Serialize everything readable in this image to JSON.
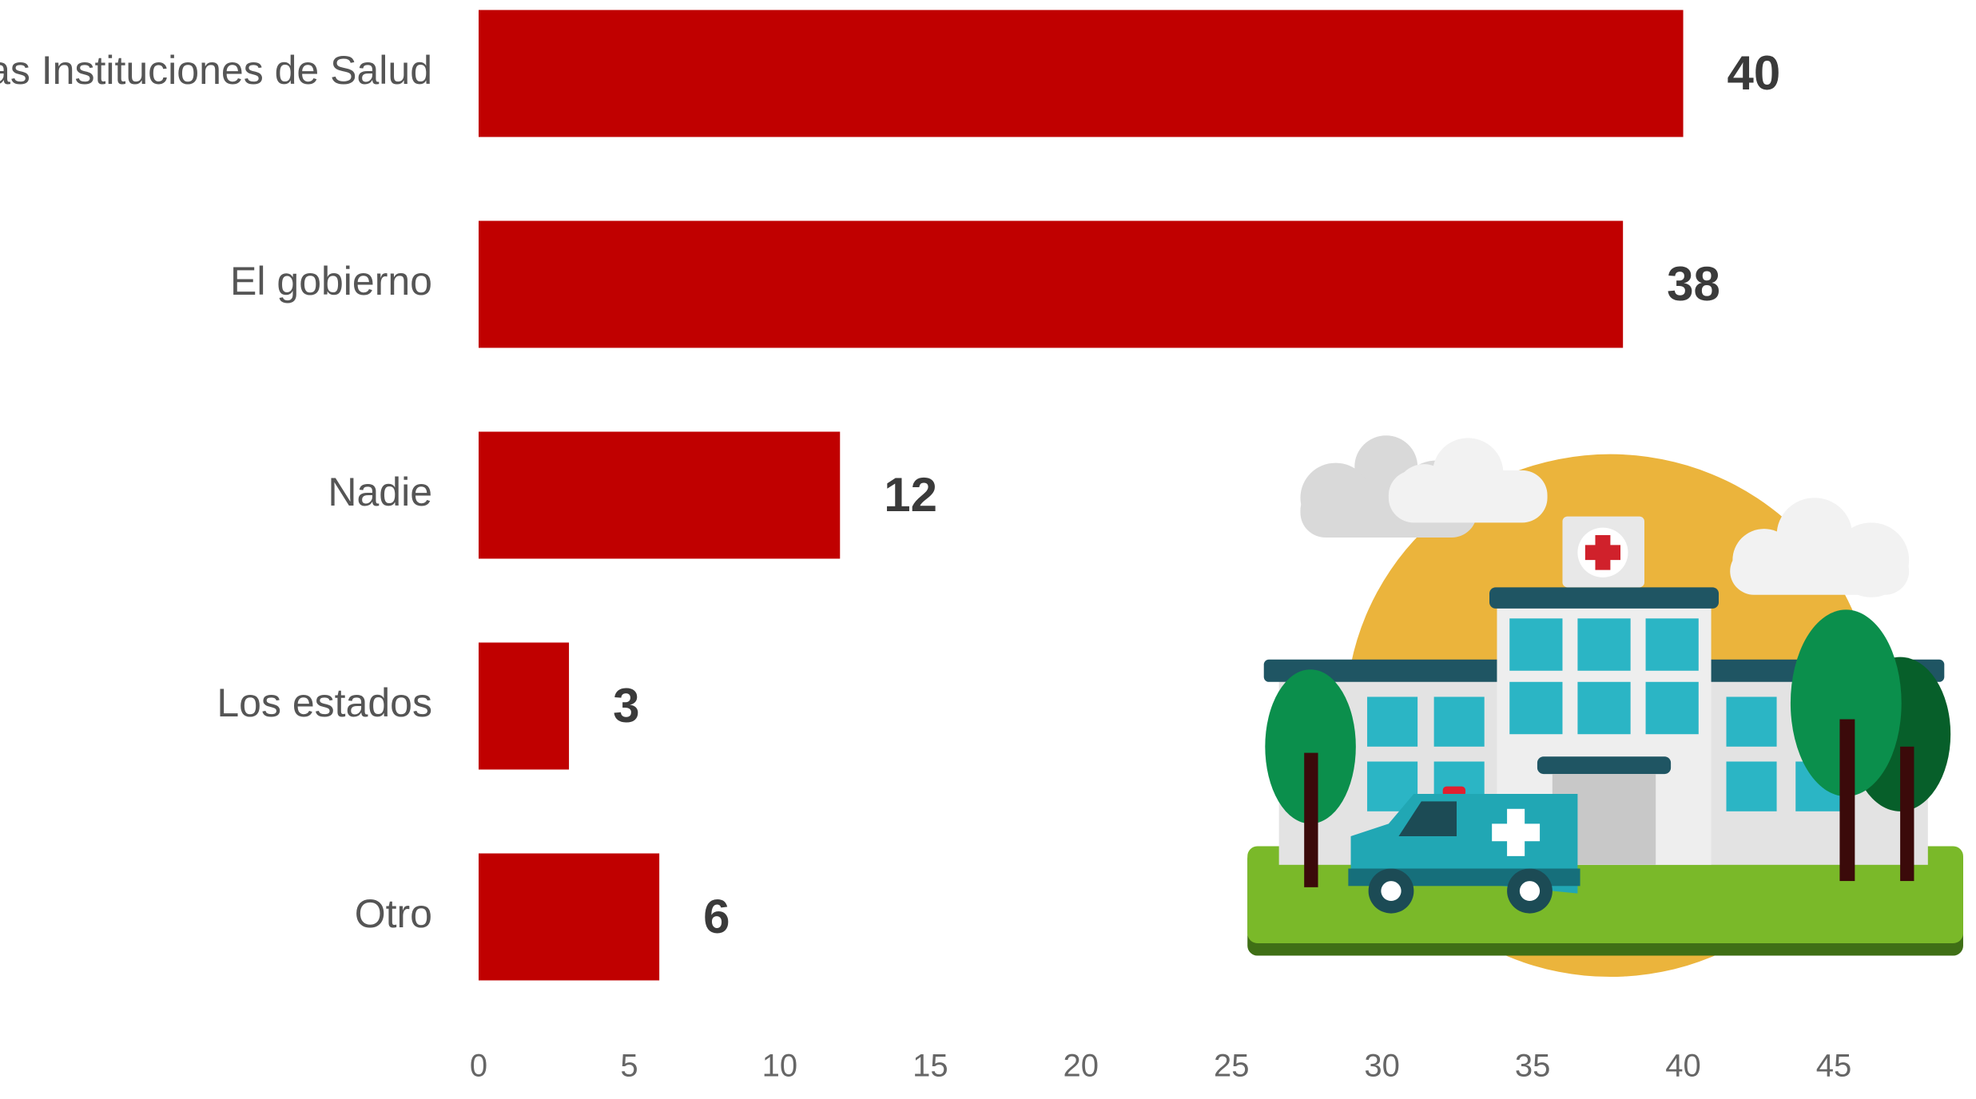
{
  "chart_data": {
    "type": "bar",
    "orientation": "horizontal",
    "categories": [
      "Las Instituciones de Salud",
      "El gobierno",
      "Nadie",
      "Los estados",
      "Otro"
    ],
    "values": [
      40,
      38,
      12,
      3,
      6
    ],
    "color": "#c00000",
    "xlim": [
      0,
      48
    ],
    "xticks": [
      0,
      5,
      10,
      15,
      20,
      25,
      30,
      35,
      40,
      45
    ],
    "grid": false
  }
}
